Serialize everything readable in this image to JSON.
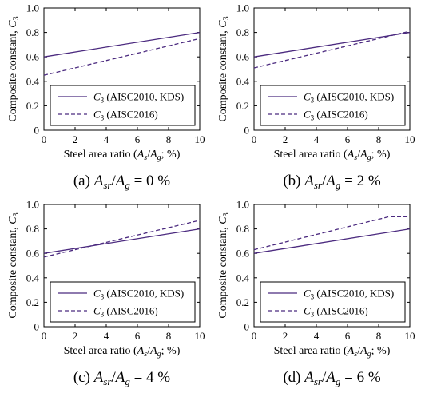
{
  "chart_data": [
    {
      "type": "line",
      "panel_caption": "(a) A_sr/A_g = 0 %",
      "caption_value": "0 %",
      "xlabel": "Steel area ratio (As/Ag; %)",
      "ylabel": "Composite constant, C3",
      "xlim": [
        0,
        10
      ],
      "ylim": [
        0,
        1.0
      ],
      "xticks": [
        0,
        2,
        4,
        6,
        8,
        10
      ],
      "yticks": [
        0,
        0.2,
        0.4,
        0.6,
        0.8,
        1.0
      ],
      "series": [
        {
          "name": "C3 (AISC2010, KDS)",
          "style": "solid",
          "x": [
            0,
            10
          ],
          "y": [
            0.6,
            0.8
          ]
        },
        {
          "name": "C3 (AISC2016)",
          "style": "dashed",
          "x": [
            0,
            10
          ],
          "y": [
            0.45,
            0.75
          ]
        }
      ],
      "legend": "bottom-right"
    },
    {
      "type": "line",
      "panel_caption": "(b) A_sr/A_g = 2 %",
      "caption_value": "2 %",
      "xlabel": "Steel area ratio (As/Ag; %)",
      "ylabel": "Composite constant, C3",
      "xlim": [
        0,
        10
      ],
      "ylim": [
        0,
        1.0
      ],
      "xticks": [
        0,
        2,
        4,
        6,
        8,
        10
      ],
      "yticks": [
        0,
        0.2,
        0.4,
        0.6,
        0.8,
        1.0
      ],
      "series": [
        {
          "name": "C3 (AISC2010, KDS)",
          "style": "solid",
          "x": [
            0,
            10
          ],
          "y": [
            0.6,
            0.8
          ]
        },
        {
          "name": "C3 (AISC2016)",
          "style": "dashed",
          "x": [
            0,
            10
          ],
          "y": [
            0.51,
            0.81
          ]
        }
      ],
      "legend": "bottom-right"
    },
    {
      "type": "line",
      "panel_caption": "(c) A_sr/A_g = 4 %",
      "caption_value": "4 %",
      "xlabel": "Steel area ratio (As/Ag; %)",
      "ylabel": "Composite constant, C3",
      "xlim": [
        0,
        10
      ],
      "ylim": [
        0,
        1.0
      ],
      "xticks": [
        0,
        2,
        4,
        6,
        8,
        10
      ],
      "yticks": [
        0,
        0.2,
        0.4,
        0.6,
        0.8,
        1.0
      ],
      "series": [
        {
          "name": "C3 (AISC2010, KDS)",
          "style": "solid",
          "x": [
            0,
            10
          ],
          "y": [
            0.6,
            0.8
          ]
        },
        {
          "name": "C3 (AISC2016)",
          "style": "dashed",
          "x": [
            0,
            10
          ],
          "y": [
            0.57,
            0.87
          ]
        }
      ],
      "legend": "bottom-right"
    },
    {
      "type": "line",
      "panel_caption": "(d) A_sr/A_g = 6 %",
      "caption_value": "6 %",
      "xlabel": "Steel area ratio (As/Ag; %)",
      "ylabel": "Composite constant, C3",
      "xlim": [
        0,
        10
      ],
      "ylim": [
        0,
        1.0
      ],
      "xticks": [
        0,
        2,
        4,
        6,
        8,
        10
      ],
      "yticks": [
        0,
        0.2,
        0.4,
        0.6,
        0.8,
        1.0
      ],
      "series": [
        {
          "name": "C3 (AISC2010, KDS)",
          "style": "solid",
          "x": [
            0,
            10
          ],
          "y": [
            0.6,
            0.8
          ]
        },
        {
          "name": "C3 (AISC2016)",
          "style": "dashed",
          "x": [
            0,
            8.67,
            10
          ],
          "y": [
            0.63,
            0.9,
            0.9
          ]
        }
      ],
      "legend": "bottom-right"
    }
  ],
  "colors": {
    "series_line": "#4b2a7f",
    "axes": "#000000"
  },
  "legend_text": {
    "c3_letter": "C",
    "c3_sub": "3",
    "entry1_rest": " (AISC2010, KDS)",
    "entry2_rest": " (AISC2016)"
  },
  "axis_text": {
    "ylabel_main": "Composite constant, ",
    "ylabel_var": "C",
    "ylabel_sub": "3",
    "xlabel_pre": "Steel area ratio (",
    "xlabel_a1": "A",
    "xlabel_s1": "s",
    "xlabel_slash": "/",
    "xlabel_a2": "A",
    "xlabel_s2": "g",
    "xlabel_post": "; %)"
  },
  "caption_text": {
    "labels": [
      "(a)",
      "(b)",
      "(c)",
      "(d)"
    ],
    "var_a": "A",
    "sub_sr": "sr",
    "slash": "/",
    "sub_g": "g",
    "eq": " = "
  }
}
